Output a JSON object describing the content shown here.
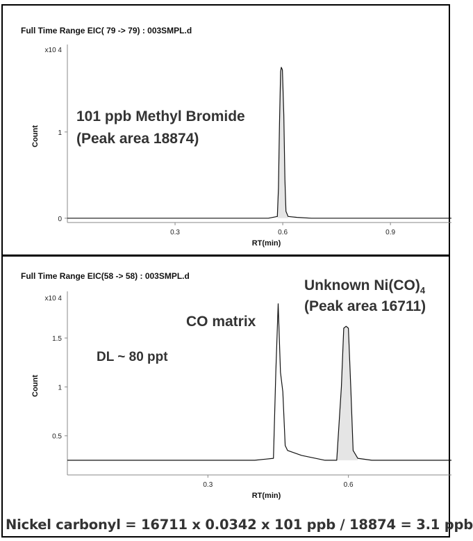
{
  "chart_data": [
    {
      "type": "line",
      "title": "Full Time Range EIC( 79 -> 79) : 003SMPL.d",
      "xlabel": "RT(min)",
      "ylabel": "Count",
      "y_multiplier_label": "x10 4",
      "x_ticks": [
        "0.3",
        "0.6",
        "0.9"
      ],
      "y_ticks": [
        "0",
        "1"
      ],
      "xlim": [
        0.0,
        1.07
      ],
      "ylim": [
        -0.05,
        1.95
      ],
      "annotations": [
        {
          "text_line1": "101 ppb Methyl Bromide",
          "text_line2": "(Peak area 18874)"
        }
      ],
      "series": [
        {
          "x": [
            0.0,
            0.08,
            0.16,
            0.24,
            0.32,
            0.4,
            0.48,
            0.56,
            0.585,
            0.588,
            0.591,
            0.594,
            0.596,
            0.599,
            0.603,
            0.606,
            0.609,
            0.615,
            0.64,
            0.68,
            0.72,
            0.8,
            0.88,
            0.96,
            1.07
          ],
          "y": [
            0.0,
            0.0,
            0.0,
            0.0,
            0.0,
            0.0,
            0.0,
            0.0,
            0.02,
            0.35,
            1.1,
            1.7,
            1.75,
            1.72,
            1.2,
            0.45,
            0.08,
            0.02,
            0.01,
            0.0,
            0.0,
            0.0,
            0.0,
            0.0,
            0.0
          ]
        }
      ]
    },
    {
      "type": "line",
      "title": "Full Time Range EIC(58 -> 58) : 003SMPL.d",
      "xlabel": "RT(min)",
      "ylabel": "Count",
      "y_multiplier_label": "x10 4",
      "x_ticks": [
        "0.3",
        "0.6"
      ],
      "y_ticks": [
        "0.5",
        "1",
        "1.5"
      ],
      "xlim": [
        0.0,
        0.82
      ],
      "ylim": [
        0.1,
        1.92
      ],
      "annotations": [
        {
          "text": "CO matrix"
        },
        {
          "text": "DL ~ 80 ppt"
        },
        {
          "text_line1": "Unknown Ni(CO)",
          "subscript": "4",
          "text_line2": "(Peak area 16711)"
        }
      ],
      "series": [
        {
          "x": [
            0.0,
            0.05,
            0.1,
            0.15,
            0.2,
            0.25,
            0.3,
            0.35,
            0.4,
            0.44,
            0.445,
            0.45,
            0.455,
            0.46,
            0.465,
            0.47,
            0.5,
            0.55,
            0.575,
            0.585,
            0.59,
            0.595,
            0.6,
            0.605,
            0.61,
            0.62,
            0.65,
            0.7,
            0.75,
            0.82
          ],
          "y": [
            0.25,
            0.25,
            0.25,
            0.25,
            0.25,
            0.25,
            0.25,
            0.25,
            0.25,
            0.27,
            1.15,
            1.85,
            1.15,
            0.95,
            0.4,
            0.35,
            0.3,
            0.25,
            0.25,
            1.0,
            1.6,
            1.62,
            1.6,
            1.0,
            0.35,
            0.27,
            0.25,
            0.25,
            0.25,
            0.25
          ]
        }
      ]
    }
  ],
  "footer": {
    "formula": "Nickel carbonyl = 16711 x 0.0342 x 101 ppb / 18874 = 3.1 ppb"
  },
  "colors": {
    "trace": "#111111",
    "fill": "#e5e5e5",
    "border": "#000000",
    "annotation_text": "#333333"
  }
}
